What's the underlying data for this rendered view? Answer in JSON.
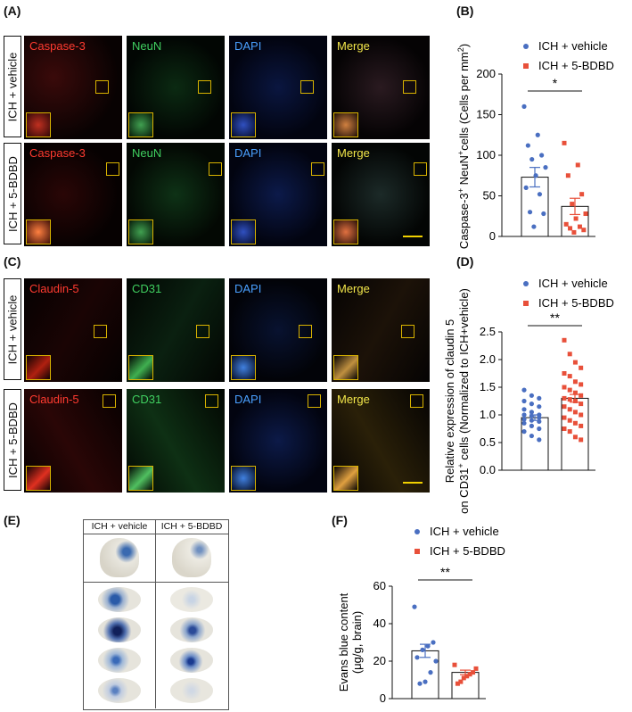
{
  "panels": {
    "A": "(A)",
    "B": "(B)",
    "C": "(C)",
    "D": "(D)",
    "E": "(E)",
    "F": "(F)"
  },
  "groups": {
    "vehicle": "ICH + vehicle",
    "bdbd": "ICH + 5-BDBD"
  },
  "panel_a": {
    "channels": [
      "Caspase-3",
      "NeuN",
      "DAPI",
      "Merge"
    ]
  },
  "panel_c": {
    "channels": [
      "Claudin-5",
      "CD31",
      "DAPI",
      "Merge"
    ]
  },
  "colors": {
    "vehicle": "#4a6fc1",
    "bdbd": "#e8503a",
    "merge_label": "#f2e64a",
    "red_label": "#ff3b30",
    "green_label": "#40d060",
    "blue_label": "#4aa0ff"
  },
  "chart_data": [
    {
      "panel": "B",
      "type": "bar",
      "ylabel_parts": [
        "Caspase-3",
        "+",
        " NeuN",
        "+",
        "cells (Cells per mm",
        "2",
        ")"
      ],
      "ylim": [
        0,
        200
      ],
      "yticks": [
        "0",
        "50",
        "100",
        "150",
        "200"
      ],
      "significance": "*",
      "series": [
        {
          "name": "ICH + vehicle",
          "mean": 73,
          "sem": 12,
          "points": [
            160,
            125,
            112,
            100,
            95,
            85,
            75,
            60,
            52,
            30,
            28,
            12
          ]
        },
        {
          "name": "ICH + 5-BDBD",
          "mean": 37,
          "sem": 10,
          "points": [
            115,
            88,
            75,
            52,
            40,
            28,
            22,
            15,
            12,
            10,
            8,
            5
          ]
        }
      ]
    },
    {
      "panel": "D",
      "type": "bar",
      "ylabel_line1": "Relative expression of claudin 5",
      "ylabel_line2_parts": [
        "on CD31",
        "+",
        " cells (Normalized to ICH+vehicle)"
      ],
      "ylim": [
        0,
        2.5
      ],
      "yticks": [
        "0.0",
        "0.5",
        "1.0",
        "1.5",
        "2.0",
        "2.5"
      ],
      "significance": "**",
      "series": [
        {
          "name": "ICH + vehicle",
          "mean": 0.95,
          "sem": 0.05,
          "points": [
            1.45,
            1.35,
            1.3,
            1.25,
            1.2,
            1.15,
            1.1,
            1.05,
            1.0,
            1.0,
            0.98,
            0.95,
            0.92,
            0.9,
            0.88,
            0.85,
            0.8,
            0.75,
            0.7,
            0.62,
            0.55
          ]
        },
        {
          "name": "ICH + 5-BDBD",
          "mean": 1.3,
          "sem": 0.07,
          "points": [
            2.35,
            2.1,
            1.95,
            1.85,
            1.75,
            1.7,
            1.6,
            1.55,
            1.5,
            1.45,
            1.4,
            1.35,
            1.3,
            1.28,
            1.25,
            1.2,
            1.15,
            1.1,
            1.05,
            1.0,
            0.95,
            0.9,
            0.85,
            0.8,
            0.75,
            0.7,
            0.6,
            0.55
          ]
        }
      ]
    },
    {
      "panel": "F",
      "type": "bar",
      "ylabel_line1": "Evans blue content",
      "ylabel_line2": "(μg/g, brain)",
      "ylim": [
        0,
        60
      ],
      "yticks": [
        "0",
        "20",
        "40",
        "60"
      ],
      "significance": "**",
      "series": [
        {
          "name": "ICH + vehicle",
          "mean": 25.5,
          "sem": 3.5,
          "points": [
            49,
            30,
            28,
            26,
            22,
            20,
            14,
            9,
            8
          ]
        },
        {
          "name": "ICH + 5-BDBD",
          "mean": 14,
          "sem": 1.2,
          "points": [
            18,
            16,
            14,
            13,
            12,
            11,
            9,
            8
          ]
        }
      ]
    }
  ]
}
